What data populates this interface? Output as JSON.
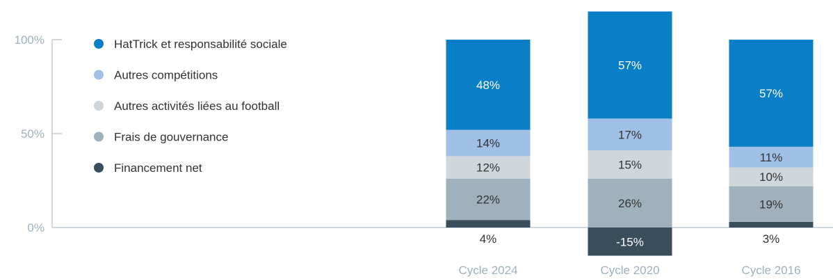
{
  "chart_data": {
    "type": "bar",
    "stacked": true,
    "categories": [
      "Cycle 2024",
      "Cycle 2020",
      "Cycle 2016"
    ],
    "series": [
      {
        "name": "Financement net",
        "color": "#384e5c",
        "values": [
          4,
          -15,
          3
        ],
        "labels": [
          "4%",
          "-15%",
          "3%"
        ]
      },
      {
        "name": "Frais de gouvernance",
        "color": "#9fb1bc",
        "values": [
          22,
          26,
          19
        ],
        "labels": [
          "22%",
          "26%",
          "19%"
        ]
      },
      {
        "name": "Autres activités liées au football",
        "color": "#cfd7dd",
        "values": [
          12,
          15,
          10
        ],
        "labels": [
          "12%",
          "15%",
          "10%"
        ]
      },
      {
        "name": "Autres compétitions",
        "color": "#a0c0e6",
        "values": [
          14,
          17,
          11
        ],
        "labels": [
          "14%",
          "17%",
          "11%"
        ]
      },
      {
        "name": "HatTrick et responsabilité sociale",
        "color": "#0a7fc8",
        "values": [
          48,
          57,
          57
        ],
        "labels": [
          "48%",
          "57%",
          "57%"
        ]
      }
    ],
    "legend_order": [
      "HatTrick et responsabilité sociale",
      "Autres compétitions",
      "Autres activités liées au football",
      "Frais de gouvernance",
      "Financement net"
    ],
    "y_ticks": [
      0,
      50,
      100
    ],
    "y_tick_labels": [
      "0%",
      "50%",
      "100%"
    ],
    "ylim": [
      -15,
      115
    ],
    "legend_position": "top-left",
    "grid": false
  }
}
